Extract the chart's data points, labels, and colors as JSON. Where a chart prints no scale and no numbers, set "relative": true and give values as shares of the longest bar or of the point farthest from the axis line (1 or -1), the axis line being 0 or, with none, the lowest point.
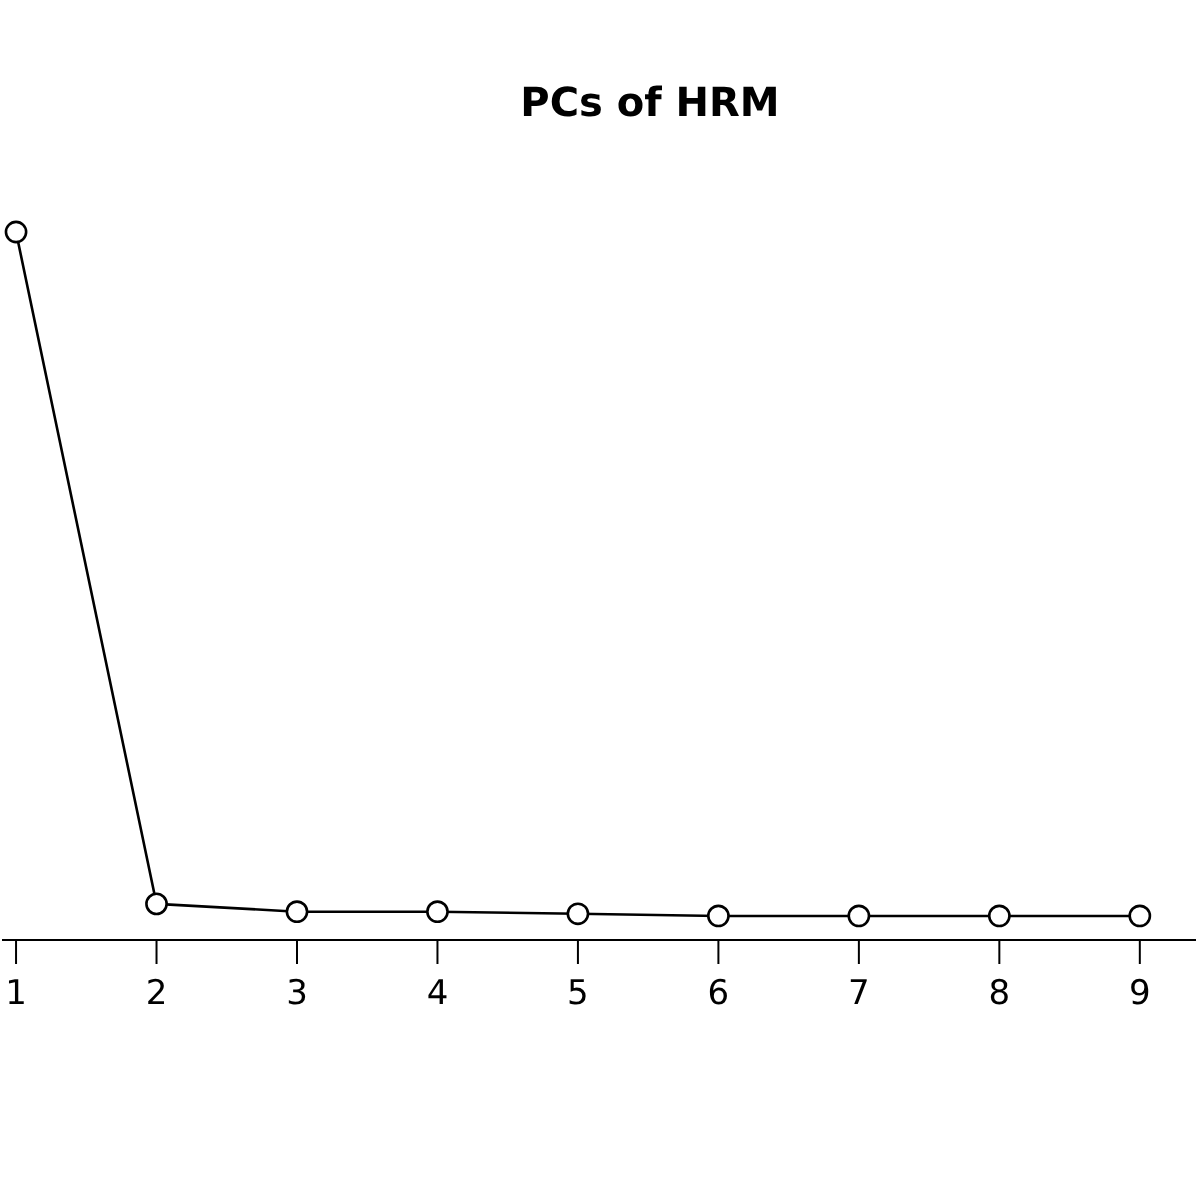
{
  "chart_data": {
    "type": "line",
    "title": "PCs of HRM",
    "x": [
      1,
      2,
      3,
      4,
      5,
      6,
      7,
      8,
      9
    ],
    "values": [
      1,
      0.051,
      0.04,
      0.04,
      0.037,
      0.034,
      0.034,
      0.034,
      0.034
    ],
    "relative": true,
    "color": "#000000",
    "xlim": [
      0.9,
      9.4
    ],
    "xticks": [
      1,
      2,
      3,
      4,
      5,
      6,
      7,
      8,
      9
    ],
    "marker": "circle",
    "line_style": "solid"
  }
}
